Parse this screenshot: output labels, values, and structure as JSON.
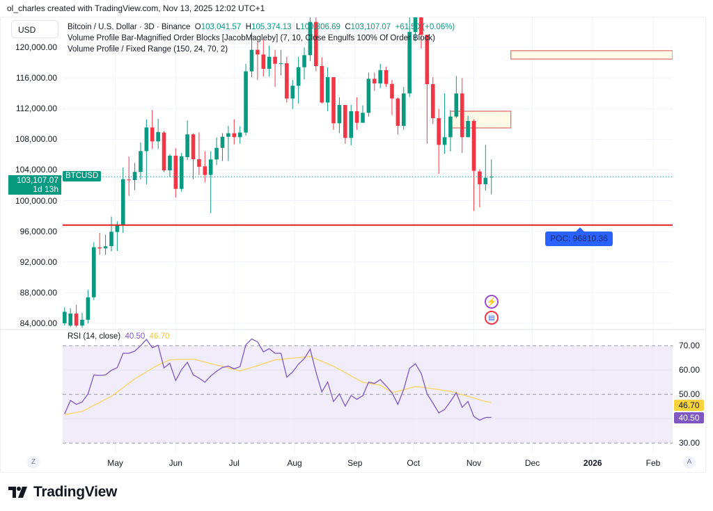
{
  "attribution": "ol_charles created with TradingView.com, Nov 13, 2025 12:02 UTC+1",
  "currency_button": "USD",
  "legend": {
    "title": "Bitcoin / U.S. Dollar · 3D · Binance",
    "open_label": "O",
    "open": "103,041.57",
    "high_label": "H",
    "high": "105,374.13",
    "low_label": "L",
    "low": "100,806.69",
    "close_label": "C",
    "close": "103,107.07",
    "change": "+61.50 (+0.06%)",
    "indicator_1": "Volume Profile Bar-Magnified Order Blocks [JacobMagleby] (7, 10, Close Engulfs 100% Of Order Block)",
    "indicator_2": "Volume Profile / Fixed Range (150, 24, 70, 2)"
  },
  "current_price": {
    "value": "103,107.07",
    "countdown": "1d 13h",
    "symbol": "BTCUSD"
  },
  "poc_label": "POC: 96810.36",
  "rsi_legend": {
    "title": "RSI (14, close)",
    "rsi": "40.50",
    "ma": "46.70"
  },
  "scale_buttons": {
    "left": "Z",
    "right": "A"
  },
  "events": [
    "lightning-event-icon",
    "us-flag-event-icon"
  ],
  "logo": "TradingView",
  "colors": {
    "up": "#089981",
    "down": "#f23645",
    "poc": "#e01f1f",
    "rsi": "#7e57c2",
    "rsi_ma": "#f5d76e",
    "order_block_fill": "#fffbe6",
    "order_block_border": "#e06666",
    "poc_label": "#2962ff"
  },
  "chart_data": [
    {
      "type": "candlestick",
      "title": "Bitcoin / U.S. Dollar · 3D · Binance",
      "x_axis": {
        "type": "date",
        "xlim": [
          "2025-04-04",
          "2026-02-11"
        ],
        "ticks": [
          {
            "date": "2025-05-01",
            "label": "May"
          },
          {
            "date": "2025-06-01",
            "label": "Jun"
          },
          {
            "date": "2025-07-01",
            "label": "Jul"
          },
          {
            "date": "2025-08-01",
            "label": "Aug"
          },
          {
            "date": "2025-09-01",
            "label": "Sep"
          },
          {
            "date": "2025-10-01",
            "label": "Oct"
          },
          {
            "date": "2025-11-01",
            "label": "Nov"
          },
          {
            "date": "2025-12-01",
            "label": "Dec"
          },
          {
            "date": "2026-01-01",
            "label": "2026",
            "bold": true
          },
          {
            "date": "2026-02-01",
            "label": "Feb"
          }
        ]
      },
      "y_axis": {
        "ylim": [
          84000,
          120000
        ],
        "position": "left",
        "ticks": [
          "120,000.00",
          "116,000.00",
          "112,000.00",
          "108,000.00",
          "104,000.00",
          "100,000.00",
          "96,000.00",
          "92,000.00",
          "88,000.00",
          "84,000.00"
        ],
        "tick_values": [
          120000,
          116000,
          112000,
          108000,
          104000,
          100000,
          96000,
          92000,
          88000,
          84000
        ]
      },
      "grid": true,
      "columns": [
        "date",
        "open",
        "high",
        "low",
        "close"
      ],
      "candles": [
        [
          "2025-04-05",
          84000,
          86100,
          83700,
          85500
        ],
        [
          "2025-04-08",
          83700,
          85970,
          83500,
          85280
        ],
        [
          "2025-04-11",
          85280,
          86400,
          83500,
          83700
        ],
        [
          "2025-04-14",
          83700,
          85370,
          83400,
          84460
        ],
        [
          "2025-04-17",
          84460,
          88390,
          83990,
          87390
        ],
        [
          "2025-04-20",
          87390,
          94580,
          87030,
          93920
        ],
        [
          "2025-04-23",
          93900,
          95790,
          92920,
          93770
        ],
        [
          "2025-04-26",
          93770,
          95550,
          92920,
          94040
        ],
        [
          "2025-04-29",
          94060,
          97910,
          93380,
          95940
        ],
        [
          "2025-05-02",
          95910,
          97300,
          93430,
          96760
        ],
        [
          "2025-05-05",
          96760,
          104320,
          95790,
          102800
        ],
        [
          "2025-05-08",
          102750,
          105760,
          100630,
          102650
        ],
        [
          "2025-05-11",
          102680,
          104920,
          101380,
          103740
        ],
        [
          "2025-05-14",
          103740,
          107580,
          102750,
          106460
        ],
        [
          "2025-05-17",
          106460,
          110600,
          102140,
          109540
        ],
        [
          "2025-05-20",
          109540,
          111810,
          106730,
          107730
        ],
        [
          "2025-05-23",
          107730,
          110660,
          106730,
          108940
        ],
        [
          "2025-05-26",
          108880,
          109090,
          103710,
          103950
        ],
        [
          "2025-05-29",
          103950,
          106070,
          103050,
          105860
        ],
        [
          "2025-06-01",
          105860,
          106820,
          100390,
          101530
        ],
        [
          "2025-06-04",
          101530,
          106220,
          101170,
          105770
        ],
        [
          "2025-06-07",
          105670,
          110450,
          105310,
          108640
        ],
        [
          "2025-06-10",
          108640,
          108790,
          102800,
          105400
        ],
        [
          "2025-06-13",
          105400,
          108880,
          103350,
          104410
        ],
        [
          "2025-06-16",
          104470,
          106430,
          102380,
          103350
        ],
        [
          "2025-06-19",
          103350,
          106430,
          98360,
          105370
        ],
        [
          "2025-06-22",
          105370,
          108240,
          104650,
          106880
        ],
        [
          "2025-06-25",
          106880,
          108790,
          105160,
          108330
        ],
        [
          "2025-06-28",
          108330,
          109750,
          105160,
          108790
        ],
        [
          "2025-07-01",
          108790,
          110600,
          107340,
          108280
        ],
        [
          "2025-07-04",
          108280,
          109690,
          107430,
          108880
        ],
        [
          "2025-07-07",
          108880,
          117850,
          108490,
          116860
        ],
        [
          "2025-07-10",
          116860,
          121930,
          116100,
          119670
        ],
        [
          "2025-07-13",
          119670,
          120870,
          115740,
          119060
        ],
        [
          "2025-07-16",
          119060,
          121030,
          116190,
          117190
        ],
        [
          "2025-07-19",
          117190,
          120210,
          116190,
          118760
        ],
        [
          "2025-07-22",
          118760,
          119670,
          114830,
          117850
        ],
        [
          "2025-07-25",
          117850,
          119670,
          116340,
          117910
        ],
        [
          "2025-07-28",
          117910,
          118760,
          112780,
          113320
        ],
        [
          "2025-07-31",
          113320,
          115740,
          111960,
          114980
        ],
        [
          "2025-08-03",
          114980,
          118760,
          112660,
          117400
        ],
        [
          "2025-08-06",
          117400,
          119970,
          115800,
          118970
        ],
        [
          "2025-08-09",
          118970,
          124100,
          118200,
          123300
        ],
        [
          "2025-08-12",
          123300,
          124400,
          116880,
          117550
        ],
        [
          "2025-08-15",
          117550,
          118700,
          112660,
          112800
        ],
        [
          "2025-08-18",
          112800,
          117400,
          111660,
          116100
        ],
        [
          "2025-08-21",
          116100,
          116100,
          109240,
          110090
        ],
        [
          "2025-08-24",
          110090,
          113470,
          108790,
          112470
        ],
        [
          "2025-08-27",
          112470,
          112470,
          107430,
          108180
        ],
        [
          "2025-08-30",
          108180,
          112470,
          107220,
          111660
        ],
        [
          "2025-09-02",
          111660,
          113470,
          109240,
          110150
        ],
        [
          "2025-09-05",
          110150,
          112420,
          110150,
          111450
        ],
        [
          "2025-09-08",
          111450,
          116700,
          110960,
          115890
        ],
        [
          "2025-09-11",
          115890,
          116700,
          114290,
          115280
        ],
        [
          "2025-09-14",
          115280,
          117850,
          114680,
          117010
        ],
        [
          "2025-09-17",
          117010,
          117490,
          114830,
          115220
        ],
        [
          "2025-09-20",
          115220,
          115740,
          111150,
          113320
        ],
        [
          "2025-09-23",
          113320,
          113470,
          108640,
          109750
        ],
        [
          "2025-09-26",
          109750,
          114830,
          109240,
          113980
        ],
        [
          "2025-09-29",
          113980,
          125500,
          113500,
          122000
        ],
        [
          "2025-10-02",
          122000,
          126200,
          120800,
          124200
        ],
        [
          "2025-10-05",
          124200,
          126000,
          119820,
          121630
        ],
        [
          "2025-10-08",
          121630,
          121630,
          107430,
          115190
        ],
        [
          "2025-10-11",
          115190,
          116100,
          109990,
          110750
        ],
        [
          "2025-10-14",
          110750,
          111960,
          103500,
          107270
        ],
        [
          "2025-10-17",
          107270,
          113980,
          106130,
          108270
        ],
        [
          "2025-10-20",
          108270,
          111810,
          106430,
          110960
        ],
        [
          "2025-10-23",
          110960,
          116250,
          110750,
          113980
        ],
        [
          "2025-10-26",
          113980,
          115980,
          106220,
          108270
        ],
        [
          "2025-10-29",
          108270,
          111060,
          108270,
          110390
        ],
        [
          "2025-11-01",
          110390,
          110600,
          98660,
          103890
        ],
        [
          "2025-11-04",
          103800,
          104110,
          99120,
          102140
        ],
        [
          "2025-11-07",
          102140,
          107270,
          101290,
          102980
        ],
        [
          "2025-11-10",
          103041.57,
          105374.13,
          100806.69,
          103107.07
        ]
      ],
      "current_price": 103107.07,
      "poc": 96810.36,
      "order_blocks": [
        {
          "from": "2025-10-20",
          "to": "2025-11-20",
          "top": 111660,
          "bottom": 109480
        },
        {
          "from": "2025-11-20",
          "to": "2026-02-11",
          "top": 119560,
          "bottom": 118460
        }
      ]
    },
    {
      "type": "line",
      "title": "RSI (14, close)",
      "y_axis": {
        "ylim": [
          30,
          70
        ],
        "ticks": [
          "70.00",
          "60.00",
          "50.00",
          "30.00"
        ],
        "tick_values": [
          70,
          60,
          50,
          30
        ],
        "bands": [
          70,
          50,
          30
        ],
        "position": "right"
      },
      "series": [
        {
          "name": "RSI",
          "values": [
            42,
            47.5,
            45.9,
            46.9,
            50.2,
            58,
            57.8,
            58,
            59.9,
            61,
            66.9,
            66.9,
            67.8,
            70,
            72.6,
            69.2,
            70.2,
            60.9,
            62.8,
            55.7,
            60.2,
            63.2,
            58.1,
            56.7,
            55,
            57.6,
            59.5,
            61.1,
            61.6,
            60.5,
            61.4,
            70.4,
            72.8,
            71.6,
            67.5,
            68.8,
            66.9,
            66.9,
            57.1,
            59.2,
            62.4,
            64.7,
            68.6,
            59.2,
            51,
            55.1,
            47.1,
            50.2,
            45.2,
            49.5,
            48,
            49.5,
            55,
            54.5,
            56.1,
            53.5,
            50.7,
            45.9,
            52.1,
            60.7,
            62.6,
            58.6,
            50.2,
            46.4,
            42.4,
            43.8,
            47.1,
            50.7,
            44.7,
            47.1,
            40.9,
            39.4,
            40.5,
            40.5
          ],
          "last": 40.5
        },
        {
          "name": "RSI MA",
          "values": [
            41.7,
            42.1,
            42.6,
            43,
            44.2,
            45.5,
            46.7,
            48,
            49.2,
            51,
            52.8,
            54.6,
            56.4,
            57.8,
            59.3,
            60.7,
            62.1,
            63.2,
            64.2,
            64.3,
            64.4,
            64.4,
            64.5,
            63.9,
            63.3,
            62.7,
            62.1,
            61.5,
            60.9,
            60.3,
            59.7,
            60.4,
            61.1,
            61.8,
            62.6,
            63.4,
            64.2,
            64.4,
            64.7,
            64.9,
            65.1,
            65.4,
            65.6,
            64.6,
            63.6,
            62.6,
            61.6,
            60.3,
            59,
            57.6,
            56.3,
            55,
            54.6,
            54.2,
            53.8,
            52.3,
            50.7,
            51.3,
            51.9,
            52.6,
            53.2,
            53,
            52.7,
            52.3,
            52,
            51.6,
            51.3,
            50.6,
            49.9,
            49.2,
            48.5,
            47.8,
            47.1,
            46.7
          ],
          "last": 46.7
        }
      ]
    }
  ]
}
